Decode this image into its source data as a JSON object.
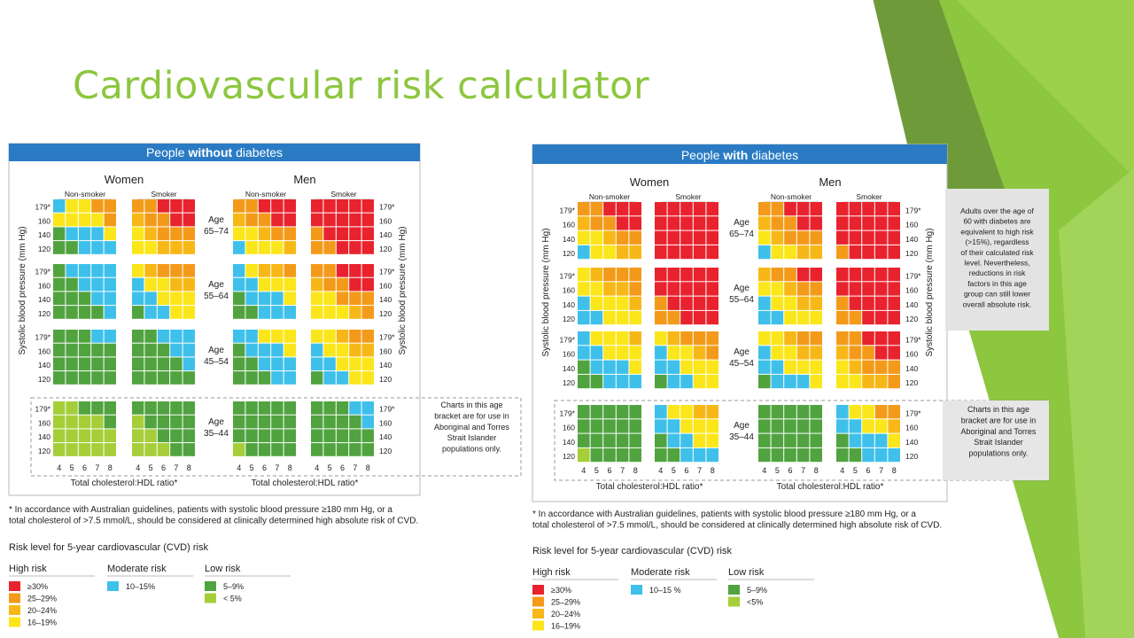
{
  "slide": {
    "title": "Cardiovascular risk calculator"
  },
  "colors": {
    "red": "#e8232e",
    "orange": "#f39a1b",
    "amber": "#f7b817",
    "yellow": "#fbe61b",
    "blue": "#3ec0ea",
    "green": "#50a33f",
    "lime": "#a5ce39",
    "header_blue": "#2a7bc4",
    "slide_green": "#8dc63f"
  },
  "chart_data": [
    {
      "type": "heatmap",
      "title": "People without diabetes",
      "title_parts": [
        "People ",
        "without",
        " diabetes"
      ],
      "sex_labels": [
        "Women",
        "Men"
      ],
      "status_labels": [
        "Non-smoker",
        "Smoker"
      ],
      "age_groups": [
        "Age\n65–74",
        "Age\n55–64",
        "Age\n45–54",
        "Age\n35–44"
      ],
      "bp_ticks": [
        "179*",
        "160",
        "140",
        "120"
      ],
      "x_ticks": [
        "4",
        "5",
        "6",
        "7",
        "8"
      ],
      "xlabel": "Total cholesterol:HDL ratio*",
      "ylabel": "Systolic blood pressure (mm Hg)",
      "codes": {
        "R": "≥30%",
        "O": "25–29%",
        "A": "20–24%",
        "Y": "16–19%",
        "B": "10–15%",
        "G": "5–9%",
        "L": "< 5%"
      },
      "grids": [
        [
          [
            "BYYOO",
            "YYYYO",
            "GBBBY",
            "GGBBB"
          ],
          [
            "OORRR",
            "AOORR",
            "YAOOO",
            "YYAAA"
          ],
          [
            "OORRR",
            "AOORR",
            "YYAOO",
            "BYYYA"
          ],
          [
            "RRRRR",
            "RRRRR",
            "ORRRR",
            "OORRR"
          ]
        ],
        [
          [
            "GBBBB",
            "GGBBB",
            "GGGBB",
            "GGGGB"
          ],
          [
            "YAOOO",
            "BYYAA",
            "BBYYY",
            "GBBYY"
          ],
          [
            "BYAAO",
            "BBYYY",
            "GBBBY",
            "GGBBB"
          ],
          [
            "OORRR",
            "AOORR",
            "YYOOO",
            "YYYAO"
          ]
        ],
        [
          [
            "GGGBB",
            "GGGGG",
            "GGGGG",
            "GGGGG"
          ],
          [
            "GGBBB",
            "GGGBB",
            "GGGGB",
            "GGGGG"
          ],
          [
            "BBYYY",
            "GBBBY",
            "GGBBB",
            "GGGBB"
          ],
          [
            "YYAOO",
            "BYYAA",
            "BBYYY",
            "GBBYY"
          ]
        ],
        [
          [
            "LLGGG",
            "LLLLG",
            "LLLLL",
            "LLLLL"
          ],
          [
            "GGGGG",
            "LGGGG",
            "LLGGG",
            "LLLGG"
          ],
          [
            "GGGGG",
            "GGGGG",
            "GGGGG",
            "LGGGG"
          ],
          [
            "GGGBB",
            "GGGGB",
            "GGGGG",
            "GGGGG"
          ]
        ]
      ],
      "indigenous_note": [
        "Charts in this age",
        "bracket are for use in",
        "Aboriginal and Torres",
        "Strait Islander",
        "populations only."
      ],
      "footnote": [
        "* In accordance with Australian guidelines, patients with systolic blood pressure ≥180 mm Hg, or a",
        "  total cholesterol of >7.5 mmol/L, should be considered at clinically determined high absolute risk of CVD."
      ],
      "legend": {
        "title": "Risk level for 5-year cardiovascular (CVD) risk",
        "groups": [
          {
            "label": "High risk",
            "items": [
              {
                "color": "#e8232e",
                "label": "≥30%"
              },
              {
                "color": "#f39a1b",
                "label": "25–29%"
              },
              {
                "color": "#f7b817",
                "label": "20–24%"
              },
              {
                "color": "#fbe61b",
                "label": "16–19%"
              }
            ]
          },
          {
            "label": "Moderate risk",
            "items": [
              {
                "color": "#3ec0ea",
                "label": "10–15%"
              }
            ]
          },
          {
            "label": "Low risk",
            "items": [
              {
                "color": "#50a33f",
                "label": "5–9%"
              },
              {
                "color": "#a5ce39",
                "label": "< 5%"
              }
            ]
          }
        ]
      }
    },
    {
      "type": "heatmap",
      "title": "People with diabetes",
      "title_parts": [
        "People ",
        "with",
        " diabetes"
      ],
      "sex_labels": [
        "Women",
        "Men"
      ],
      "status_labels": [
        "Non-smoker",
        "Smoker"
      ],
      "age_groups": [
        "Age\n65–74",
        "Age\n55–64",
        "Age\n45–54",
        "Age\n35–44"
      ],
      "bp_ticks": [
        "179*",
        "160",
        "140",
        "120"
      ],
      "x_ticks": [
        "4",
        "5",
        "6",
        "7",
        "8"
      ],
      "xlabel": "Total cholesterol:HDL ratio*",
      "ylabel": "Systolic blood pressure (mm Hg)",
      "codes": {
        "R": "≥30%",
        "O": "25–29%",
        "A": "20–24%",
        "Y": "16–19%",
        "B": "10–15%",
        "G": "5–9%",
        "L": "<5%"
      },
      "grids": [
        [
          [
            "OORRR",
            "AOORR",
            "YYAOO",
            "BYYAA"
          ],
          [
            "RRRRR",
            "RRRRR",
            "RRRRR",
            "RRRRR"
          ],
          [
            "OORRR",
            "AOORR",
            "YAOOO",
            "BYYAA"
          ],
          [
            "RRRRR",
            "RRRRR",
            "RRRRR",
            "ORRRR"
          ]
        ],
        [
          [
            "YAOOO",
            "YYAAO",
            "BYYYA",
            "BBYYY"
          ],
          [
            "RRRRR",
            "RRRRR",
            "ORRRR",
            "OORRR"
          ],
          [
            "AOORR",
            "YYAOO",
            "BYYAA",
            "BBYYY"
          ],
          [
            "RRRRR",
            "RRRRR",
            "ORRRR",
            "OORRR"
          ]
        ],
        [
          [
            "BYYYA",
            "BBYYY",
            "GBBBY",
            "GGBBB"
          ],
          [
            "YAOOO",
            "BYYAO",
            "BBYYY",
            "GBBYY"
          ],
          [
            "YYAOO",
            "BYYAA",
            "BBYYY",
            "GBBBY"
          ],
          [
            "OORRR",
            "AOORR",
            "YAOOO",
            "YYAAO"
          ]
        ],
        [
          [
            "GGGGG",
            "GGGGG",
            "GGGGG",
            "LGGGG"
          ],
          [
            "BYYAA",
            "BBYYY",
            "GBBYY",
            "GGBBB"
          ],
          [
            "GGGGG",
            "GGGGG",
            "GGGGG",
            "GGGGG"
          ],
          [
            "BYYOO",
            "BBYYA",
            "GBBBY",
            "GGBBB"
          ]
        ]
      ],
      "indigenous_note": [
        "Charts in this age",
        "bracket are for use in",
        "Aboriginal and Torres",
        "Strait Islander",
        "populations only."
      ],
      "side_note": [
        "Adults over the age of",
        "60 with diabetes are",
        "equivalent to high risk",
        "(>15%), regardless",
        "of their calculated risk",
        "level. Nevertheless,",
        "reductions in risk",
        "factors in this age",
        "group can still lower",
        "overall absolute risk."
      ],
      "footnote": [
        "* In accordance with Australian guidelines, patients with systolic blood pressure ≥180 mm Hg, or a",
        "  total cholesterol of >7.5 mmol/L, should be considered at clinically determined high absolute risk of CVD."
      ],
      "legend": {
        "title": "Risk level for 5-year cardiovascular (CVD) risk",
        "groups": [
          {
            "label": "High risk",
            "items": [
              {
                "color": "#e8232e",
                "label": "≥30%"
              },
              {
                "color": "#f39a1b",
                "label": "25–29%"
              },
              {
                "color": "#f7b817",
                "label": "20–24%"
              },
              {
                "color": "#fbe61b",
                "label": "16–19%"
              }
            ]
          },
          {
            "label": "Moderate risk",
            "items": [
              {
                "color": "#3ec0ea",
                "label": "10–15 %"
              }
            ]
          },
          {
            "label": "Low risk",
            "items": [
              {
                "color": "#50a33f",
                "label": "5–9%"
              },
              {
                "color": "#a5ce39",
                "label": "<5%"
              }
            ]
          }
        ]
      }
    }
  ]
}
